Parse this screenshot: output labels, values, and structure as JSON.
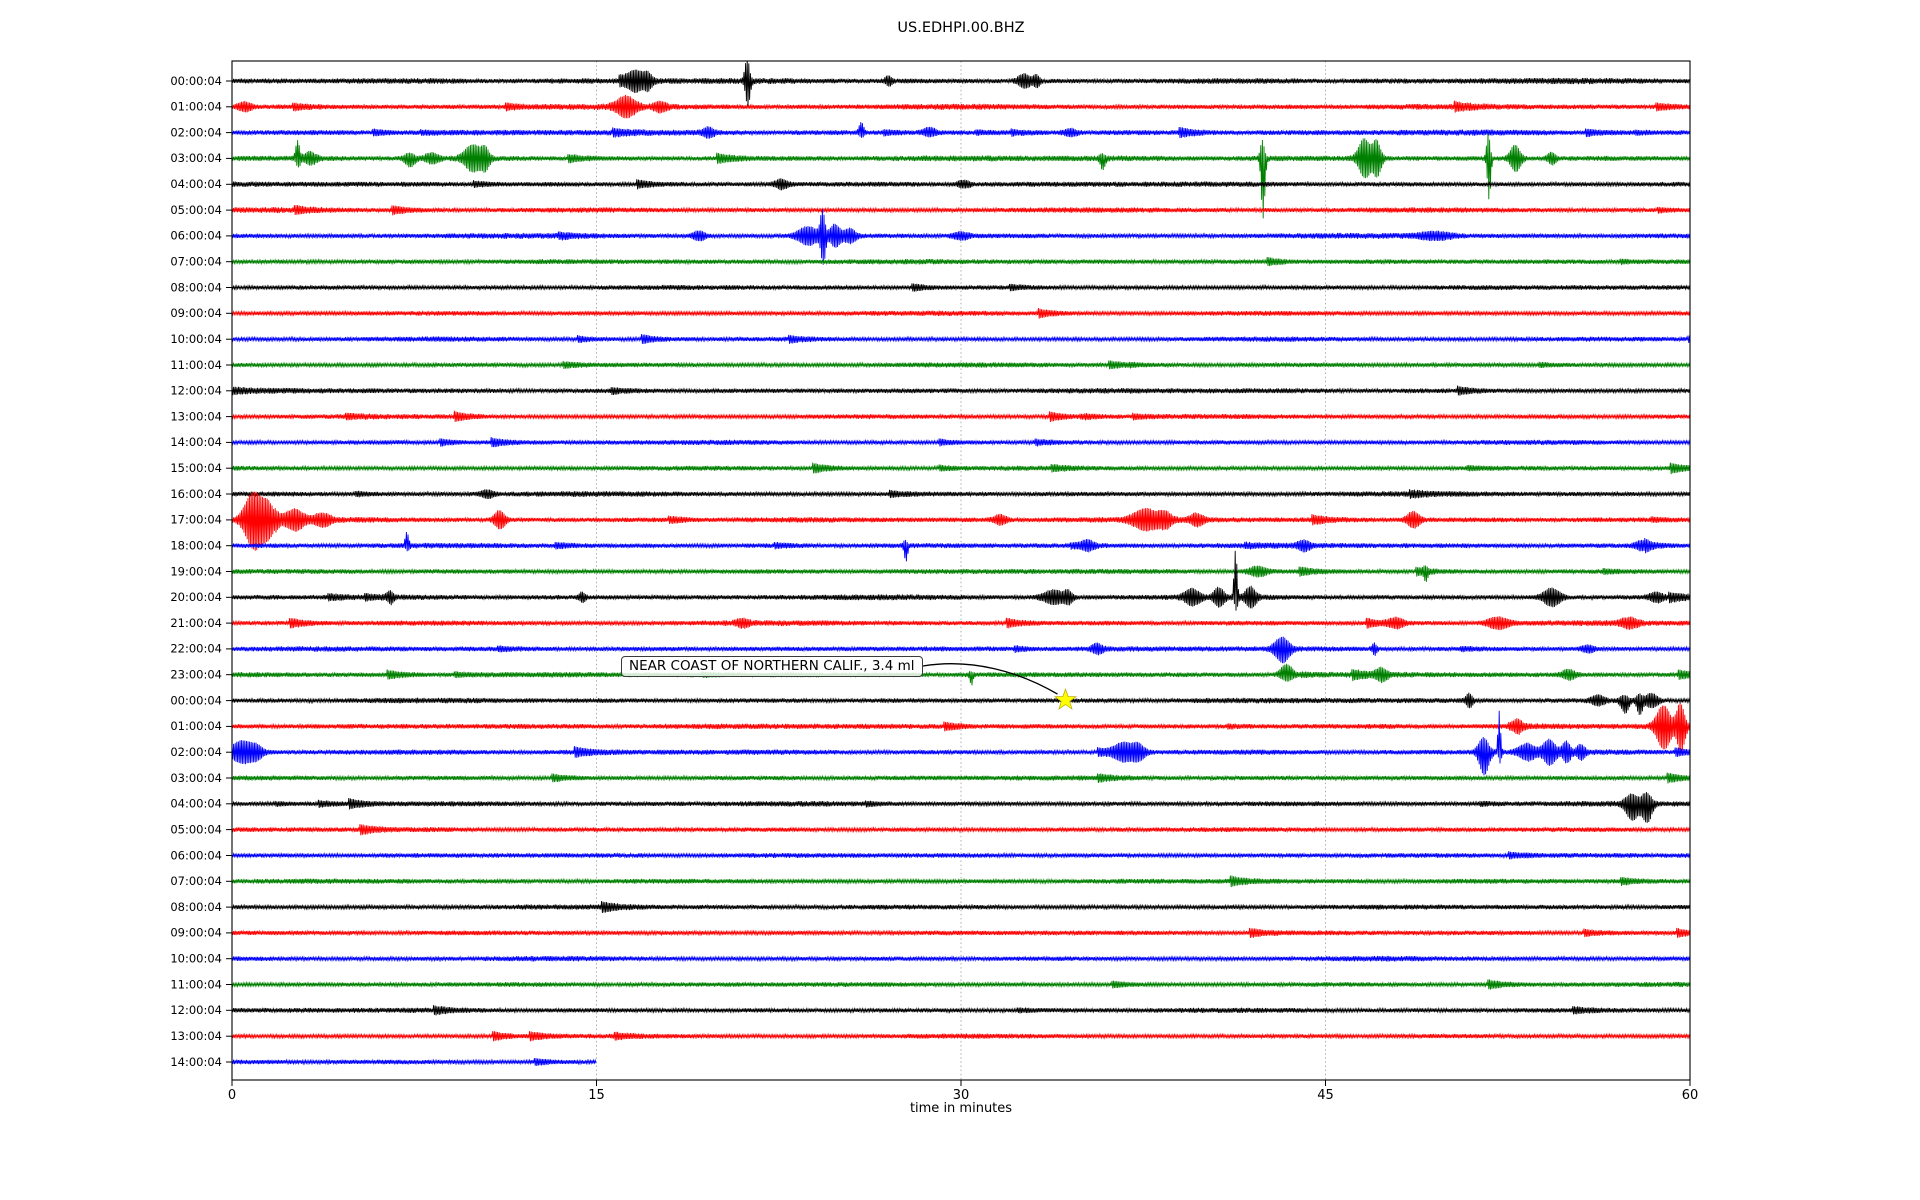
{
  "chart_data": {
    "type": "line",
    "title": "US.EDHPI.00.BHZ",
    "xlabel": "time in minutes",
    "x_ticks": [
      0,
      15,
      30,
      45,
      60
    ],
    "x_range_minutes": [
      0,
      60
    ],
    "grid": {
      "vertical_dotted_at_minutes": [
        15,
        30,
        45
      ],
      "color": "#9a9a9a"
    },
    "trace_color_cycle": [
      "#000000",
      "#ff0000",
      "#0000ff",
      "#008000"
    ],
    "rows": [
      {
        "label": "00:00:04",
        "namp": 3.3
      },
      {
        "label": "01:00:04",
        "namp": 3.3
      },
      {
        "label": "02:00:04",
        "namp": 3.2
      },
      {
        "label": "03:00:04",
        "namp": 3.3
      },
      {
        "label": "04:00:04",
        "namp": 3.0
      },
      {
        "label": "05:00:04",
        "namp": 3.0
      },
      {
        "label": "06:00:04",
        "namp": 3.0
      },
      {
        "label": "07:00:04",
        "namp": 2.9
      },
      {
        "label": "08:00:04",
        "namp": 2.7
      },
      {
        "label": "09:00:04",
        "namp": 2.8
      },
      {
        "label": "10:00:04",
        "namp": 2.7
      },
      {
        "label": "11:00:04",
        "namp": 2.7
      },
      {
        "label": "12:00:04",
        "namp": 3.0
      },
      {
        "label": "13:00:04",
        "namp": 2.7
      },
      {
        "label": "14:00:04",
        "namp": 2.7
      },
      {
        "label": "15:00:04",
        "namp": 2.7
      },
      {
        "label": "16:00:04",
        "namp": 2.9
      },
      {
        "label": "17:00:04",
        "namp": 3.2
      },
      {
        "label": "18:00:04",
        "namp": 3.0
      },
      {
        "label": "19:00:04",
        "namp": 2.9
      },
      {
        "label": "20:00:04",
        "namp": 3.1
      },
      {
        "label": "21:00:04",
        "namp": 3.0
      },
      {
        "label": "22:00:04",
        "namp": 3.0
      },
      {
        "label": "23:00:04",
        "namp": 3.0
      },
      {
        "label": "00:00:04",
        "namp": 3.0
      },
      {
        "label": "01:00:04",
        "namp": 3.1
      },
      {
        "label": "02:00:04",
        "namp": 3.0
      },
      {
        "label": "03:00:04",
        "namp": 2.8
      },
      {
        "label": "04:00:04",
        "namp": 2.9
      },
      {
        "label": "05:00:04",
        "namp": 2.7
      },
      {
        "label": "06:00:04",
        "namp": 2.8
      },
      {
        "label": "07:00:04",
        "namp": 2.8
      },
      {
        "label": "08:00:04",
        "namp": 2.8
      },
      {
        "label": "09:00:04",
        "namp": 2.7
      },
      {
        "label": "10:00:04",
        "namp": 2.8
      },
      {
        "label": "11:00:04",
        "namp": 2.7
      },
      {
        "label": "12:00:04",
        "namp": 2.8
      },
      {
        "label": "13:00:04",
        "namp": 2.7
      },
      {
        "label": "14:00:04",
        "namp": 2.9,
        "end_minute": 15
      }
    ],
    "annotation": {
      "text": "NEAR COAST OF NORTHERN CALIF., 3.4 ml",
      "row_index": 24,
      "minute": 34.3,
      "marker": "star",
      "marker_color": "#ffff00"
    },
    "events": [
      {
        "r": 0,
        "m": 16.6,
        "w": 0.4,
        "u": 8,
        "d": 8
      },
      {
        "r": 0,
        "m": 17.1,
        "w": 0.2,
        "u": 6,
        "d": 6
      },
      {
        "r": 0,
        "m": 21.2,
        "w": 0.12,
        "u": 20,
        "d": 23
      },
      {
        "r": 0,
        "m": 27.0,
        "w": 0.15,
        "u": 4,
        "d": 4
      },
      {
        "r": 0,
        "m": 32.6,
        "w": 0.3,
        "u": 6,
        "d": 6
      },
      {
        "r": 0,
        "m": 33.1,
        "w": 0.15,
        "u": 5,
        "d": 5
      },
      {
        "r": 1,
        "m": 0.5,
        "w": 0.3,
        "u": 4,
        "d": 4
      },
      {
        "r": 1,
        "m": 16.2,
        "w": 0.45,
        "u": 9,
        "d": 9
      },
      {
        "r": 1,
        "m": 17.6,
        "w": 0.3,
        "u": 4,
        "d": 4
      },
      {
        "r": 2,
        "m": 19.6,
        "w": 0.25,
        "u": 4,
        "d": 4
      },
      {
        "r": 2,
        "m": 25.9,
        "w": 0.12,
        "u": 9,
        "d": 3
      },
      {
        "r": 2,
        "m": 28.7,
        "w": 0.3,
        "u": 4,
        "d": 3
      },
      {
        "r": 2,
        "m": 34.5,
        "w": 0.3,
        "u": 3,
        "d": 3
      },
      {
        "r": 3,
        "m": 2.7,
        "w": 0.1,
        "u": 16,
        "d": 7
      },
      {
        "r": 3,
        "m": 3.2,
        "w": 0.3,
        "u": 5,
        "d": 5
      },
      {
        "r": 3,
        "m": 7.3,
        "w": 0.25,
        "u": 4,
        "d": 7
      },
      {
        "r": 3,
        "m": 8.2,
        "w": 0.3,
        "u": 4,
        "d": 4
      },
      {
        "r": 3,
        "m": 9.9,
        "w": 0.4,
        "u": 12,
        "d": 12
      },
      {
        "r": 3,
        "m": 10.4,
        "w": 0.2,
        "u": 9,
        "d": 9
      },
      {
        "r": 3,
        "m": 35.8,
        "w": 0.12,
        "u": 3,
        "d": 10
      },
      {
        "r": 3,
        "m": 42.4,
        "w": 0.1,
        "u": 16,
        "d": 58
      },
      {
        "r": 3,
        "m": 46.6,
        "w": 0.3,
        "u": 18,
        "d": 18
      },
      {
        "r": 3,
        "m": 47.1,
        "w": 0.2,
        "u": 16,
        "d": 16
      },
      {
        "r": 3,
        "m": 51.7,
        "w": 0.09,
        "u": 24,
        "d": 40
      },
      {
        "r": 3,
        "m": 52.8,
        "w": 0.25,
        "u": 12,
        "d": 12
      },
      {
        "r": 3,
        "m": 54.3,
        "w": 0.2,
        "u": 5,
        "d": 5
      },
      {
        "r": 4,
        "m": 22.6,
        "w": 0.3,
        "u": 4,
        "d": 4
      },
      {
        "r": 4,
        "m": 30.1,
        "w": 0.3,
        "u": 3,
        "d": 3
      },
      {
        "r": 6,
        "m": 19.2,
        "w": 0.3,
        "u": 4,
        "d": 4
      },
      {
        "r": 6,
        "m": 23.7,
        "w": 0.5,
        "u": 8,
        "d": 8
      },
      {
        "r": 6,
        "m": 24.3,
        "w": 0.12,
        "u": 23,
        "d": 25
      },
      {
        "r": 6,
        "m": 24.8,
        "w": 0.25,
        "u": 10,
        "d": 10
      },
      {
        "r": 6,
        "m": 25.4,
        "w": 0.3,
        "u": 6,
        "d": 6
      },
      {
        "r": 6,
        "m": 30.0,
        "w": 0.4,
        "u": 3,
        "d": 3
      },
      {
        "r": 6,
        "m": 49.5,
        "w": 0.8,
        "u": 3,
        "d": 3
      },
      {
        "r": 16,
        "m": 10.5,
        "w": 0.3,
        "u": 3,
        "d": 3
      },
      {
        "r": 17,
        "m": 0.9,
        "w": 0.45,
        "u": 26,
        "d": 28
      },
      {
        "r": 17,
        "m": 1.5,
        "w": 0.3,
        "u": 13,
        "d": 13
      },
      {
        "r": 17,
        "m": 2.6,
        "w": 0.4,
        "u": 8,
        "d": 8
      },
      {
        "r": 17,
        "m": 3.7,
        "w": 0.4,
        "u": 5,
        "d": 5
      },
      {
        "r": 17,
        "m": 11.0,
        "w": 0.25,
        "u": 8,
        "d": 8
      },
      {
        "r": 17,
        "m": 31.6,
        "w": 0.3,
        "u": 4,
        "d": 4
      },
      {
        "r": 17,
        "m": 37.6,
        "w": 0.6,
        "u": 9,
        "d": 9
      },
      {
        "r": 17,
        "m": 38.4,
        "w": 0.3,
        "u": 6,
        "d": 6
      },
      {
        "r": 17,
        "m": 39.7,
        "w": 0.3,
        "u": 5,
        "d": 5
      },
      {
        "r": 17,
        "m": 48.6,
        "w": 0.3,
        "u": 7,
        "d": 7
      },
      {
        "r": 18,
        "m": 7.2,
        "w": 0.09,
        "u": 12,
        "d": 4
      },
      {
        "r": 18,
        "m": 27.7,
        "w": 0.09,
        "u": 4,
        "d": 14
      },
      {
        "r": 18,
        "m": 35.2,
        "w": 0.3,
        "u": 4,
        "d": 4
      },
      {
        "r": 18,
        "m": 44.1,
        "w": 0.3,
        "u": 4,
        "d": 4
      },
      {
        "r": 18,
        "m": 58.0,
        "w": 0.3,
        "u": 4,
        "d": 4
      },
      {
        "r": 19,
        "m": 42.2,
        "w": 0.4,
        "u": 4,
        "d": 4
      },
      {
        "r": 19,
        "m": 49.1,
        "w": 0.1,
        "u": 3,
        "d": 7
      },
      {
        "r": 20,
        "m": 6.5,
        "w": 0.15,
        "u": 5,
        "d": 5
      },
      {
        "r": 20,
        "m": 14.4,
        "w": 0.15,
        "u": 4,
        "d": 4
      },
      {
        "r": 20,
        "m": 33.8,
        "w": 0.5,
        "u": 6,
        "d": 6
      },
      {
        "r": 20,
        "m": 34.4,
        "w": 0.2,
        "u": 5,
        "d": 5
      },
      {
        "r": 20,
        "m": 39.5,
        "w": 0.35,
        "u": 7,
        "d": 7
      },
      {
        "r": 20,
        "m": 40.6,
        "w": 0.25,
        "u": 8,
        "d": 8
      },
      {
        "r": 20,
        "m": 41.3,
        "w": 0.08,
        "u": 46,
        "d": 11
      },
      {
        "r": 20,
        "m": 41.9,
        "w": 0.25,
        "u": 9,
        "d": 9
      },
      {
        "r": 20,
        "m": 54.3,
        "w": 0.4,
        "u": 8,
        "d": 8
      },
      {
        "r": 20,
        "m": 58.6,
        "w": 0.3,
        "u": 4,
        "d": 4
      },
      {
        "r": 21,
        "m": 21.0,
        "w": 0.3,
        "u": 3,
        "d": 3
      },
      {
        "r": 21,
        "m": 47.9,
        "w": 0.35,
        "u": 4,
        "d": 4
      },
      {
        "r": 21,
        "m": 52.1,
        "w": 0.5,
        "u": 5,
        "d": 5
      },
      {
        "r": 21,
        "m": 57.5,
        "w": 0.4,
        "u": 4,
        "d": 4
      },
      {
        "r": 22,
        "m": 35.6,
        "w": 0.25,
        "u": 4,
        "d": 4
      },
      {
        "r": 22,
        "m": 43.2,
        "w": 0.35,
        "u": 10,
        "d": 12
      },
      {
        "r": 22,
        "m": 47.0,
        "w": 0.1,
        "u": 5,
        "d": 5
      },
      {
        "r": 22,
        "m": 55.8,
        "w": 0.3,
        "u": 3,
        "d": 3
      },
      {
        "r": 23,
        "m": 30.4,
        "w": 0.08,
        "u": 2,
        "d": 9
      },
      {
        "r": 23,
        "m": 43.4,
        "w": 0.3,
        "u": 9,
        "d": 5
      },
      {
        "r": 23,
        "m": 47.3,
        "w": 0.25,
        "u": 5,
        "d": 5
      },
      {
        "r": 23,
        "m": 55.0,
        "w": 0.3,
        "u": 4,
        "d": 4
      },
      {
        "r": 24,
        "m": 50.9,
        "w": 0.15,
        "u": 6,
        "d": 6
      },
      {
        "r": 24,
        "m": 56.2,
        "w": 0.3,
        "u": 4,
        "d": 4
      },
      {
        "r": 24,
        "m": 57.3,
        "w": 0.2,
        "u": 4,
        "d": 11
      },
      {
        "r": 24,
        "m": 57.9,
        "w": 0.15,
        "u": 5,
        "d": 13
      },
      {
        "r": 24,
        "m": 58.4,
        "w": 0.3,
        "u": 6,
        "d": 6
      },
      {
        "r": 25,
        "m": 52.9,
        "w": 0.2,
        "u": 5,
        "d": 5
      },
      {
        "r": 25,
        "m": 58.9,
        "w": 0.35,
        "u": 19,
        "d": 21
      },
      {
        "r": 25,
        "m": 59.6,
        "w": 0.2,
        "u": 21,
        "d": 23
      },
      {
        "r": 26,
        "m": 0.4,
        "w": 0.5,
        "u": 10,
        "d": 10
      },
      {
        "r": 26,
        "m": 1.0,
        "w": 0.3,
        "u": 5,
        "d": 5
      },
      {
        "r": 26,
        "m": 36.7,
        "w": 0.5,
        "u": 8,
        "d": 8
      },
      {
        "r": 26,
        "m": 37.3,
        "w": 0.3,
        "u": 6,
        "d": 6
      },
      {
        "r": 26,
        "m": 51.5,
        "w": 0.25,
        "u": 13,
        "d": 21
      },
      {
        "r": 26,
        "m": 52.15,
        "w": 0.07,
        "u": 40,
        "d": 9
      },
      {
        "r": 26,
        "m": 53.3,
        "w": 0.4,
        "u": 7,
        "d": 7
      },
      {
        "r": 26,
        "m": 54.2,
        "w": 0.3,
        "u": 11,
        "d": 11
      },
      {
        "r": 26,
        "m": 54.9,
        "w": 0.2,
        "u": 9,
        "d": 9
      },
      {
        "r": 26,
        "m": 55.5,
        "w": 0.2,
        "u": 6,
        "d": 6
      },
      {
        "r": 28,
        "m": 57.6,
        "w": 0.3,
        "u": 8,
        "d": 15
      },
      {
        "r": 28,
        "m": 58.2,
        "w": 0.25,
        "u": 9,
        "d": 17
      }
    ]
  }
}
